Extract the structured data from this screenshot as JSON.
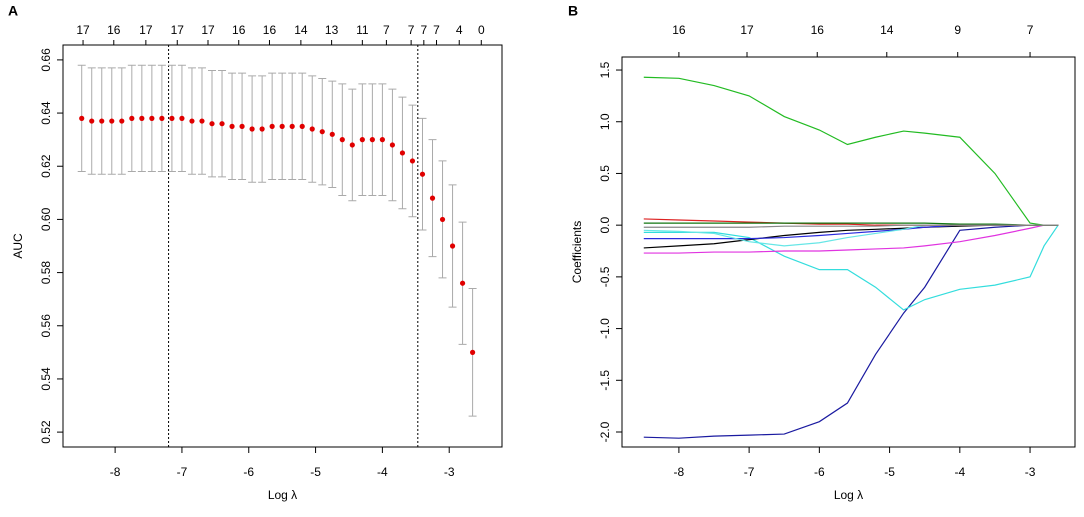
{
  "chart_data": [
    {
      "type": "errorbar",
      "panel_label": "A",
      "xlabel": "Log λ",
      "ylabel": "AUC",
      "xlim": [
        -8.78,
        -2.21
      ],
      "xticks": [
        -8,
        -7,
        -6,
        -5,
        -4,
        -3
      ],
      "ylim": [
        0.5144,
        0.6656
      ],
      "yticks": [
        0.52,
        0.54,
        0.56,
        0.58,
        {
          "value": 0.6,
          "label": "0.60"
        },
        0.62,
        0.64,
        0.66
      ],
      "top_xticks": [
        {
          "value": -8.48,
          "label": "17"
        },
        {
          "value": -8.02,
          "label": "16"
        },
        {
          "value": -7.54,
          "label": "17"
        },
        {
          "value": -7.07,
          "label": "17"
        },
        {
          "value": -6.61,
          "label": "17"
        },
        {
          "value": -6.15,
          "label": "16"
        },
        {
          "value": -5.69,
          "label": "16"
        },
        {
          "value": -5.22,
          "label": "14"
        },
        {
          "value": -4.76,
          "label": "13"
        },
        {
          "value": -4.3,
          "label": "11"
        },
        {
          "value": -3.94,
          "label": "7"
        },
        {
          "value": -3.57,
          "label": "7"
        },
        {
          "value": -3.38,
          "label": "7"
        },
        {
          "value": -3.19,
          "label": "7"
        },
        {
          "value": -2.85,
          "label": "4"
        },
        {
          "value": -2.52,
          "label": "0"
        }
      ],
      "reference_lines_x": [
        -7.2,
        -3.47
      ],
      "color": "#e00000",
      "error_color": "#aaaaaa",
      "x": [
        -8.5,
        -8.35,
        -8.2,
        -8.05,
        -7.9,
        -7.75,
        -7.6,
        -7.45,
        -7.3,
        -7.15,
        -7.0,
        -6.85,
        -6.7,
        -6.55,
        -6.4,
        -6.25,
        -6.1,
        -5.95,
        -5.8,
        -5.65,
        -5.5,
        -5.35,
        -5.2,
        -5.05,
        -4.9,
        -4.75,
        -4.6,
        -4.45,
        -4.3,
        -4.15,
        -4.0,
        -3.85,
        -3.7,
        -3.55,
        -3.4,
        -3.25,
        -3.1,
        -2.95,
        -2.8,
        -2.65
      ],
      "values": [
        0.638,
        0.637,
        0.637,
        0.637,
        0.637,
        0.638,
        0.638,
        0.638,
        0.638,
        0.638,
        0.638,
        0.637,
        0.637,
        0.636,
        0.636,
        0.635,
        0.635,
        0.634,
        0.634,
        0.635,
        0.635,
        0.635,
        0.635,
        0.634,
        0.633,
        0.632,
        0.63,
        0.628,
        0.63,
        0.63,
        0.63,
        0.628,
        0.625,
        0.622,
        0.617,
        0.608,
        0.6,
        0.59,
        0.576,
        0.55
      ],
      "errors": [
        0.02,
        0.02,
        0.02,
        0.02,
        0.02,
        0.02,
        0.02,
        0.02,
        0.02,
        0.02,
        0.02,
        0.02,
        0.02,
        0.02,
        0.02,
        0.02,
        0.02,
        0.02,
        0.02,
        0.02,
        0.02,
        0.02,
        0.02,
        0.02,
        0.02,
        0.02,
        0.021,
        0.021,
        0.021,
        0.021,
        0.021,
        0.021,
        0.021,
        0.021,
        0.021,
        0.022,
        0.022,
        0.023,
        0.023,
        0.024
      ]
    },
    {
      "type": "line",
      "panel_label": "B",
      "xlabel": "Log λ",
      "ylabel": "Coefficients",
      "xlim": [
        -8.81,
        -2.36
      ],
      "xticks": [
        -8,
        -7,
        -6,
        -5,
        -4,
        -3
      ],
      "ylim": [
        -2.145,
        1.626
      ],
      "yticks": [
        {
          "value": -2,
          "label": "-2.0"
        },
        -1.5,
        {
          "value": -1,
          "label": "-1.0"
        },
        -0.5,
        {
          "value": 0,
          "label": "0.0"
        },
        0.5,
        {
          "value": 1,
          "label": "1.0"
        },
        1.5
      ],
      "top_xticks": [
        {
          "value": -8,
          "label": "16"
        },
        {
          "value": -7.03,
          "label": "17"
        },
        {
          "value": -6.03,
          "label": "16"
        },
        {
          "value": -5.04,
          "label": "14"
        },
        {
          "value": -4.03,
          "label": "9"
        },
        {
          "value": -3.0,
          "label": "7"
        }
      ],
      "x": [
        -8.5,
        -8,
        -7.5,
        -7,
        -6.5,
        -6,
        -5.6,
        -5.2,
        -4.8,
        -4.5,
        -4.0,
        -3.5,
        -3.0,
        -2.8,
        -2.6
      ],
      "series": [
        {
          "color": "#22bb22",
          "values": [
            1.43,
            1.42,
            1.35,
            1.25,
            1.05,
            0.92,
            0.78,
            0.85,
            0.91,
            0.89,
            0.85,
            0.5,
            0.02,
            0,
            0
          ]
        },
        {
          "color": "#1a1aa0",
          "values": [
            -2.05,
            -2.06,
            -2.04,
            -2.03,
            -2.02,
            -1.9,
            -1.72,
            -1.25,
            -0.85,
            -0.6,
            -0.05,
            -0.02,
            0,
            0,
            0
          ]
        },
        {
          "color": "#33dddd",
          "values": [
            -0.07,
            -0.07,
            -0.07,
            -0.12,
            -0.3,
            -0.43,
            -0.43,
            -0.6,
            -0.82,
            -0.72,
            -0.62,
            -0.58,
            -0.5,
            -0.2,
            0
          ]
        },
        {
          "color": "#e033e0",
          "values": [
            -0.27,
            -0.27,
            -0.26,
            -0.26,
            -0.25,
            -0.25,
            -0.24,
            -0.23,
            -0.22,
            -0.2,
            -0.16,
            -0.1,
            -0.03,
            0,
            0
          ]
        },
        {
          "color": "#000000",
          "values": [
            -0.22,
            -0.2,
            -0.18,
            -0.14,
            -0.1,
            -0.07,
            -0.05,
            -0.04,
            -0.03,
            -0.02,
            -0.01,
            0,
            0,
            0,
            0
          ]
        },
        {
          "color": "#2b2bdd",
          "values": [
            -0.13,
            -0.13,
            -0.13,
            -0.13,
            -0.12,
            -0.1,
            -0.08,
            -0.06,
            -0.04,
            -0.02,
            0,
            0,
            0,
            0,
            0
          ]
        },
        {
          "color": "#66e6e6",
          "values": [
            -0.05,
            -0.06,
            -0.08,
            -0.16,
            -0.2,
            -0.17,
            -0.12,
            -0.08,
            -0.04,
            0,
            0,
            0,
            0,
            0,
            0
          ]
        },
        {
          "color": "#dd2222",
          "values": [
            0.06,
            0.05,
            0.04,
            0.03,
            0.02,
            0.01,
            0.01,
            0,
            0,
            0,
            0,
            0,
            0,
            0,
            0
          ]
        },
        {
          "color": "#117711",
          "values": [
            0.02,
            0.02,
            0.02,
            0.02,
            0.02,
            0.02,
            0.02,
            0.02,
            0.02,
            0.02,
            0.01,
            0.01,
            0,
            0,
            0
          ]
        },
        {
          "color": "#888888",
          "values": [
            -0.02,
            -0.02,
            -0.02,
            -0.02,
            -0.01,
            -0.01,
            -0.01,
            -0.01,
            0,
            0,
            0,
            0,
            0,
            0,
            0
          ]
        }
      ]
    }
  ]
}
